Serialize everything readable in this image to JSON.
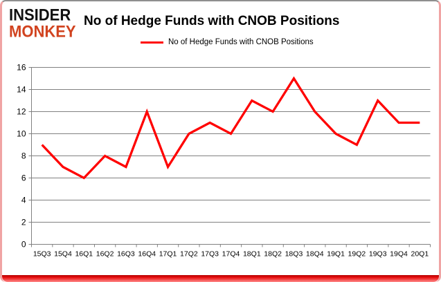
{
  "logo": {
    "line1": "INSIDER",
    "line2": "MONKEY",
    "line1_color": "#111111",
    "line2_color": "#d1431f"
  },
  "header": {
    "title": "No of Hedge Funds with CNOB Positions"
  },
  "legend": {
    "label": "No of Hedge Funds with CNOB Positions",
    "swatch_color": "#ff0000"
  },
  "chart_data": {
    "type": "line",
    "title": "No of Hedge Funds with CNOB Positions",
    "series_name": "No of Hedge Funds with CNOB Positions",
    "categories": [
      "15Q3",
      "15Q4",
      "16Q1",
      "16Q2",
      "16Q3",
      "16Q4",
      "17Q1",
      "17Q2",
      "17Q3",
      "17Q4",
      "18Q1",
      "18Q2",
      "18Q3",
      "18Q4",
      "19Q1",
      "19Q2",
      "19Q3",
      "19Q4",
      "20Q1"
    ],
    "values": [
      9,
      7,
      6,
      8,
      7,
      12,
      7,
      10,
      11,
      10,
      13,
      12,
      15,
      12,
      10,
      9,
      13,
      11,
      11
    ],
    "ylim": [
      0,
      16
    ],
    "ytick_step": 2,
    "grid": true,
    "legend_position": "top-center",
    "line_color": "#ff0000",
    "gridline_color": "#808080",
    "axis_color": "#808080",
    "axis_text_color": "#000000"
  },
  "frame": {
    "top_border_color": "#8f8f8f",
    "side_border_color": "#f0a4a4",
    "bottom_bar_gradient": [
      "#b50000",
      "#ff8a8a"
    ]
  }
}
